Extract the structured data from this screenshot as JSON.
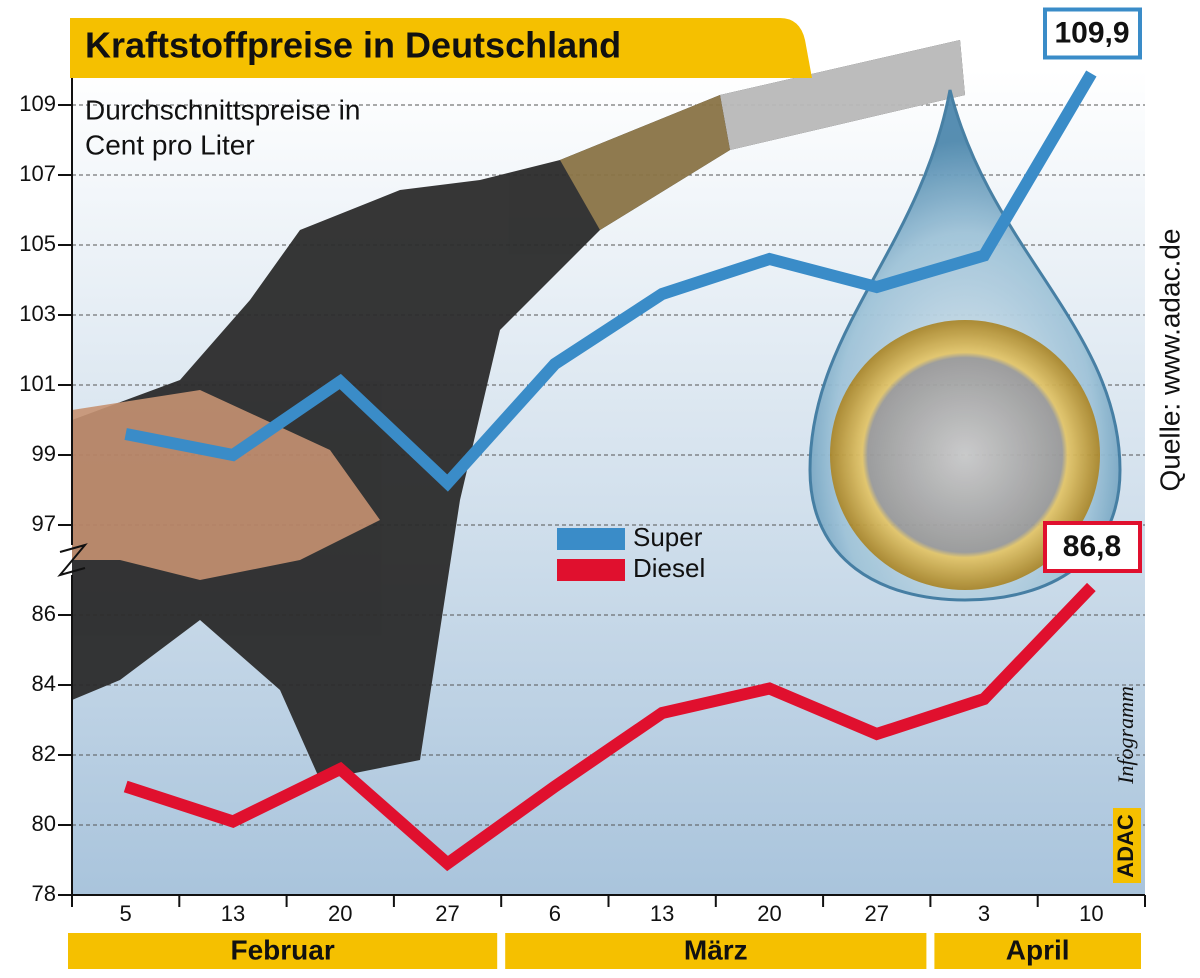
{
  "chart_data": {
    "type": "line",
    "title": "Kraftstoffpreise in Deutschland",
    "subtitle": [
      "Durchschnittspreise in",
      "Cent pro Liter"
    ],
    "source": "Quelle: www.adac.de",
    "brand": "ADAC",
    "brand_suffix": "Infogramm",
    "categories": [
      "5",
      "13",
      "20",
      "27",
      "6",
      "13",
      "20",
      "27",
      "3",
      "10"
    ],
    "x_groups": [
      "Februar",
      "März",
      "April"
    ],
    "series": [
      {
        "name": "Super",
        "color": "#3a8cc8",
        "values": [
          99.6,
          99.0,
          101.1,
          98.2,
          101.6,
          103.6,
          104.6,
          103.8,
          104.7,
          109.9
        ],
        "value_labels": [
          null,
          null,
          null,
          null,
          null,
          null,
          null,
          null,
          null,
          "109,9"
        ]
      },
      {
        "name": "Diesel",
        "color": "#e0102e",
        "values": [
          81.1,
          80.1,
          81.6,
          78.9,
          81.1,
          83.2,
          83.9,
          82.6,
          83.6,
          86.8
        ],
        "value_labels": [
          null,
          null,
          null,
          null,
          null,
          null,
          null,
          null,
          null,
          "86,8"
        ]
      }
    ],
    "ylim": [
      78,
      110
    ],
    "axis_break": [
      87,
      96.5
    ],
    "yticks": [
      78,
      80,
      82,
      84,
      86,
      97,
      99,
      101,
      103,
      105,
      107,
      109
    ],
    "grid": true
  }
}
